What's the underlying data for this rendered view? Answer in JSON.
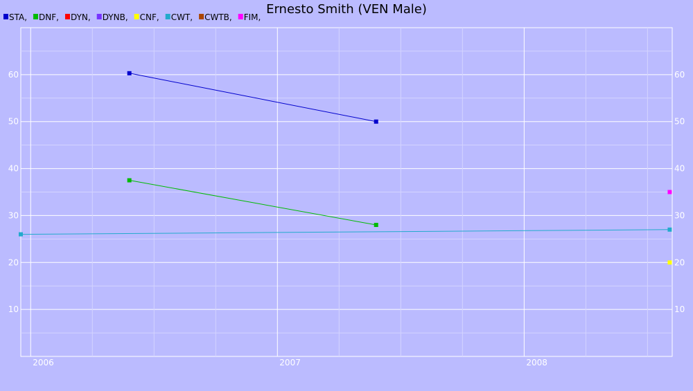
{
  "chart_data": {
    "type": "line",
    "title": "Ernesto Smith (VEN Male)",
    "legend_position": "top-left",
    "grid": true,
    "xlim": [
      2005.96,
      2008.6
    ],
    "ylim": [
      0,
      70
    ],
    "x_ticks": [
      {
        "value": 2006,
        "label": "2006"
      },
      {
        "value": 2007,
        "label": "2007"
      },
      {
        "value": 2008,
        "label": "2008"
      }
    ],
    "y_ticks": [
      {
        "value": 10,
        "label": "10"
      },
      {
        "value": 20,
        "label": "20"
      },
      {
        "value": 30,
        "label": "30"
      },
      {
        "value": 40,
        "label": "40"
      },
      {
        "value": 50,
        "label": "50"
      },
      {
        "value": 60,
        "label": "60"
      }
    ],
    "series": [
      {
        "name": "STA,",
        "color": "#0000cc",
        "points": [
          [
            2006.4,
            60.3
          ],
          [
            2007.4,
            50.0
          ]
        ]
      },
      {
        "name": "DNF,",
        "color": "#00bb00",
        "points": [
          [
            2006.4,
            37.5
          ],
          [
            2007.4,
            28.0
          ]
        ]
      },
      {
        "name": "DYN,",
        "color": "#ff0000",
        "points": []
      },
      {
        "name": "DYNB,",
        "color": "#7733ff",
        "points": []
      },
      {
        "name": "CNF,",
        "color": "#ffff00",
        "points": [
          [
            2008.59,
            20.0
          ]
        ]
      },
      {
        "name": "CWT,",
        "color": "#22aacc",
        "points": [
          [
            2005.96,
            26.0
          ],
          [
            2008.59,
            27.0
          ]
        ]
      },
      {
        "name": "CWTB,",
        "color": "#aa4400",
        "points": []
      },
      {
        "name": "FIM,",
        "color": "#ff00ff",
        "points": [
          [
            2008.59,
            35.0
          ]
        ]
      }
    ]
  }
}
